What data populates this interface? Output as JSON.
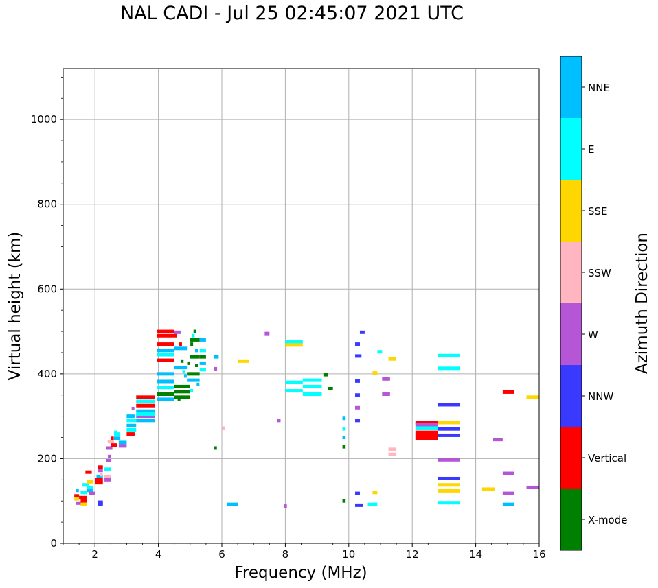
{
  "chart_data": {
    "type": "scatter",
    "title": "NAL CADI - Jul 25 02:45:07 2021 UTC",
    "xlabel": "Frequency (MHz)",
    "ylabel": "Virtual height (km)",
    "xlim": [
      1,
      16
    ],
    "ylim": [
      0,
      1120
    ],
    "xticks": [
      2,
      4,
      6,
      8,
      10,
      12,
      14,
      16
    ],
    "yticks": [
      0,
      200,
      400,
      600,
      800,
      1000
    ],
    "grid": true,
    "colorbar": {
      "label": "Azimuth Direction",
      "categories": [
        {
          "name": "X-mode",
          "color": "#008000"
        },
        {
          "name": "Vertical",
          "color": "#ff0000"
        },
        {
          "name": "NNW",
          "color": "#3a3aff"
        },
        {
          "name": "W",
          "color": "#b456d6"
        },
        {
          "name": "SSW",
          "color": "#ffb6c1"
        },
        {
          "name": "SSE",
          "color": "#ffd700"
        },
        {
          "name": "E",
          "color": "#00ffff"
        },
        {
          "name": "NNE",
          "color": "#00bfff"
        }
      ]
    },
    "echoes": [
      {
        "f0": 1.35,
        "f1": 1.5,
        "h": 112,
        "dir": "Vertical"
      },
      {
        "f0": 1.35,
        "f1": 1.5,
        "h": 105,
        "dir": "SSE"
      },
      {
        "f0": 1.4,
        "f1": 1.6,
        "h": 95,
        "dir": "W"
      },
      {
        "f0": 1.55,
        "f1": 1.75,
        "h": 120,
        "dir": "E"
      },
      {
        "f0": 1.5,
        "f1": 1.75,
        "h": 108,
        "dir": "Vertical"
      },
      {
        "f0": 1.55,
        "f1": 1.75,
        "h": 100,
        "dir": "Vertical"
      },
      {
        "f0": 1.55,
        "f1": 1.75,
        "h": 92,
        "dir": "SSE"
      },
      {
        "f0": 1.6,
        "f1": 1.8,
        "h": 138,
        "dir": "E"
      },
      {
        "f0": 1.75,
        "f1": 1.95,
        "h": 125,
        "dir": "NNE"
      },
      {
        "f0": 1.75,
        "f1": 1.95,
        "h": 132,
        "dir": "E"
      },
      {
        "f0": 1.75,
        "f1": 1.95,
        "h": 145,
        "dir": "SSE"
      },
      {
        "f0": 1.8,
        "f1": 2.0,
        "h": 118,
        "dir": "W"
      },
      {
        "f0": 1.7,
        "f1": 1.9,
        "h": 168,
        "dir": "Vertical"
      },
      {
        "f0": 2.0,
        "f1": 2.25,
        "h": 150,
        "dir": "Vertical"
      },
      {
        "f0": 2.0,
        "f1": 2.25,
        "h": 143,
        "dir": "Vertical"
      },
      {
        "f0": 2.05,
        "f1": 2.25,
        "h": 158,
        "dir": "NNE"
      },
      {
        "f0": 2.1,
        "f1": 2.25,
        "h": 180,
        "dir": "Vertical"
      },
      {
        "f0": 2.1,
        "f1": 2.25,
        "h": 172,
        "dir": "W"
      },
      {
        "f0": 2.1,
        "f1": 2.25,
        "h": 97,
        "dir": "NNW"
      },
      {
        "f0": 2.1,
        "f1": 2.25,
        "h": 92,
        "dir": "NNW"
      },
      {
        "f0": 2.3,
        "f1": 2.5,
        "h": 150,
        "dir": "W"
      },
      {
        "f0": 2.3,
        "f1": 2.5,
        "h": 158,
        "dir": "SSW"
      },
      {
        "f0": 2.3,
        "f1": 2.5,
        "h": 175,
        "dir": "E"
      },
      {
        "f0": 2.35,
        "f1": 2.5,
        "h": 195,
        "dir": "W"
      },
      {
        "f0": 2.35,
        "f1": 2.55,
        "h": 225,
        "dir": "W"
      },
      {
        "f0": 2.4,
        "f1": 2.6,
        "h": 240,
        "dir": "SSW"
      },
      {
        "f0": 2.5,
        "f1": 2.7,
        "h": 232,
        "dir": "Vertical"
      },
      {
        "f0": 2.6,
        "f1": 2.8,
        "h": 248,
        "dir": "NNE"
      },
      {
        "f0": 2.6,
        "f1": 2.8,
        "h": 258,
        "dir": "E"
      },
      {
        "f0": 2.75,
        "f1": 3.0,
        "h": 238,
        "dir": "NNE"
      },
      {
        "f0": 2.75,
        "f1": 3.0,
        "h": 230,
        "dir": "W"
      },
      {
        "f0": 3.0,
        "f1": 3.25,
        "h": 300,
        "dir": "NNE"
      },
      {
        "f0": 3.0,
        "f1": 3.3,
        "h": 290,
        "dir": "E"
      },
      {
        "f0": 3.0,
        "f1": 3.3,
        "h": 278,
        "dir": "NNE"
      },
      {
        "f0": 3.0,
        "f1": 3.3,
        "h": 268,
        "dir": "E"
      },
      {
        "f0": 3.0,
        "f1": 3.25,
        "h": 258,
        "dir": "Vertical"
      },
      {
        "f0": 3.3,
        "f1": 3.9,
        "h": 345,
        "dir": "Vertical"
      },
      {
        "f0": 3.3,
        "f1": 3.9,
        "h": 325,
        "dir": "Vertical"
      },
      {
        "f0": 3.3,
        "f1": 3.9,
        "h": 335,
        "dir": "E"
      },
      {
        "f0": 3.3,
        "f1": 3.9,
        "h": 312,
        "dir": "NNE"
      },
      {
        "f0": 3.3,
        "f1": 3.9,
        "h": 300,
        "dir": "W"
      },
      {
        "f0": 3.3,
        "f1": 3.9,
        "h": 290,
        "dir": "NNE"
      },
      {
        "f0": 3.3,
        "f1": 3.9,
        "h": 305,
        "dir": "E"
      },
      {
        "f0": 3.95,
        "f1": 4.5,
        "h": 500,
        "dir": "Vertical"
      },
      {
        "f0": 3.95,
        "f1": 4.5,
        "h": 490,
        "dir": "Vertical"
      },
      {
        "f0": 3.95,
        "f1": 4.5,
        "h": 470,
        "dir": "Vertical"
      },
      {
        "f0": 3.95,
        "f1": 4.5,
        "h": 455,
        "dir": "NNE"
      },
      {
        "f0": 3.95,
        "f1": 4.5,
        "h": 445,
        "dir": "E"
      },
      {
        "f0": 3.95,
        "f1": 4.5,
        "h": 432,
        "dir": "Vertical"
      },
      {
        "f0": 3.95,
        "f1": 4.5,
        "h": 400,
        "dir": "NNE"
      },
      {
        "f0": 3.95,
        "f1": 4.5,
        "h": 382,
        "dir": "NNE"
      },
      {
        "f0": 3.95,
        "f1": 4.5,
        "h": 368,
        "dir": "E"
      },
      {
        "f0": 3.95,
        "f1": 4.5,
        "h": 352,
        "dir": "X-mode"
      },
      {
        "f0": 3.95,
        "f1": 4.5,
        "h": 340,
        "dir": "NNE"
      },
      {
        "f0": 4.5,
        "f1": 5.0,
        "h": 370,
        "dir": "X-mode"
      },
      {
        "f0": 4.5,
        "f1": 5.0,
        "h": 358,
        "dir": "X-mode"
      },
      {
        "f0": 4.5,
        "f1": 5.0,
        "h": 345,
        "dir": "X-mode"
      },
      {
        "f0": 4.5,
        "f1": 4.9,
        "h": 415,
        "dir": "NNE"
      },
      {
        "f0": 4.5,
        "f1": 4.9,
        "h": 460,
        "dir": "NNE"
      },
      {
        "f0": 4.5,
        "f1": 4.7,
        "h": 498,
        "dir": "W"
      },
      {
        "f0": 4.9,
        "f1": 5.3,
        "h": 400,
        "dir": "X-mode"
      },
      {
        "f0": 4.9,
        "f1": 5.3,
        "h": 385,
        "dir": "NNE"
      },
      {
        "f0": 5.0,
        "f1": 5.3,
        "h": 440,
        "dir": "X-mode"
      },
      {
        "f0": 5.0,
        "f1": 5.3,
        "h": 480,
        "dir": "X-mode"
      },
      {
        "f0": 5.3,
        "f1": 5.5,
        "h": 480,
        "dir": "NNE"
      },
      {
        "f0": 5.3,
        "f1": 5.5,
        "h": 455,
        "dir": "E"
      },
      {
        "f0": 5.3,
        "f1": 5.5,
        "h": 425,
        "dir": "NNE"
      },
      {
        "f0": 5.3,
        "f1": 5.5,
        "h": 410,
        "dir": "E"
      },
      {
        "f0": 5.3,
        "f1": 5.5,
        "h": 440,
        "dir": "X-mode"
      },
      {
        "f0": 5.75,
        "f1": 5.85,
        "h": 412,
        "dir": "W"
      },
      {
        "f0": 5.75,
        "f1": 5.9,
        "h": 440,
        "dir": "NNE"
      },
      {
        "f0": 6.15,
        "f1": 6.5,
        "h": 92,
        "dir": "NNE"
      },
      {
        "f0": 6.5,
        "f1": 6.85,
        "h": 430,
        "dir": "SSE"
      },
      {
        "f0": 7.35,
        "f1": 7.5,
        "h": 495,
        "dir": "W"
      },
      {
        "f0": 7.75,
        "f1": 7.85,
        "h": 290,
        "dir": "W"
      },
      {
        "f0": 7.95,
        "f1": 8.05,
        "h": 88,
        "dir": "W"
      },
      {
        "f0": 8.0,
        "f1": 8.55,
        "h": 475,
        "dir": "E"
      },
      {
        "f0": 8.0,
        "f1": 8.55,
        "h": 468,
        "dir": "SSE"
      },
      {
        "f0": 8.0,
        "f1": 8.55,
        "h": 380,
        "dir": "E"
      },
      {
        "f0": 8.0,
        "f1": 8.55,
        "h": 360,
        "dir": "E"
      },
      {
        "f0": 8.55,
        "f1": 9.15,
        "h": 385,
        "dir": "E"
      },
      {
        "f0": 8.55,
        "f1": 9.15,
        "h": 370,
        "dir": "E"
      },
      {
        "f0": 8.55,
        "f1": 9.15,
        "h": 352,
        "dir": "E"
      },
      {
        "f0": 9.2,
        "f1": 9.35,
        "h": 398,
        "dir": "X-mode"
      },
      {
        "f0": 9.35,
        "f1": 9.5,
        "h": 365,
        "dir": "X-mode"
      },
      {
        "f0": 9.8,
        "f1": 9.9,
        "h": 295,
        "dir": "NNE"
      },
      {
        "f0": 9.8,
        "f1": 9.9,
        "h": 270,
        "dir": "E"
      },
      {
        "f0": 9.8,
        "f1": 9.9,
        "h": 250,
        "dir": "NNE"
      },
      {
        "f0": 9.8,
        "f1": 9.9,
        "h": 228,
        "dir": "X-mode"
      },
      {
        "f0": 9.8,
        "f1": 9.9,
        "h": 100,
        "dir": "X-mode"
      },
      {
        "f0": 10.2,
        "f1": 10.35,
        "h": 470,
        "dir": "NNW"
      },
      {
        "f0": 10.2,
        "f1": 10.4,
        "h": 442,
        "dir": "NNW"
      },
      {
        "f0": 10.2,
        "f1": 10.35,
        "h": 383,
        "dir": "NNW"
      },
      {
        "f0": 10.2,
        "f1": 10.35,
        "h": 350,
        "dir": "NNW"
      },
      {
        "f0": 10.2,
        "f1": 10.35,
        "h": 320,
        "dir": "W"
      },
      {
        "f0": 10.2,
        "f1": 10.35,
        "h": 290,
        "dir": "NNW"
      },
      {
        "f0": 10.2,
        "f1": 10.35,
        "h": 118,
        "dir": "NNW"
      },
      {
        "f0": 10.2,
        "f1": 10.45,
        "h": 90,
        "dir": "NNW"
      },
      {
        "f0": 10.35,
        "f1": 10.5,
        "h": 498,
        "dir": "NNW"
      },
      {
        "f0": 10.6,
        "f1": 10.9,
        "h": 92,
        "dir": "E"
      },
      {
        "f0": 10.75,
        "f1": 10.9,
        "h": 402,
        "dir": "SSE"
      },
      {
        "f0": 10.75,
        "f1": 10.9,
        "h": 120,
        "dir": "SSE"
      },
      {
        "f0": 10.9,
        "f1": 11.05,
        "h": 452,
        "dir": "E"
      },
      {
        "f0": 11.05,
        "f1": 11.3,
        "h": 388,
        "dir": "W"
      },
      {
        "f0": 11.05,
        "f1": 11.3,
        "h": 352,
        "dir": "W"
      },
      {
        "f0": 11.25,
        "f1": 11.5,
        "h": 435,
        "dir": "SSE"
      },
      {
        "f0": 11.25,
        "f1": 11.5,
        "h": 222,
        "dir": "SSW"
      },
      {
        "f0": 11.25,
        "f1": 11.5,
        "h": 210,
        "dir": "SSW"
      },
      {
        "f0": 12.1,
        "f1": 12.8,
        "h": 285,
        "dir": "Vertical"
      },
      {
        "f0": 12.1,
        "f1": 12.8,
        "h": 280,
        "dir": "W"
      },
      {
        "f0": 12.1,
        "f1": 12.8,
        "h": 272,
        "dir": "E"
      },
      {
        "f0": 12.1,
        "f1": 12.8,
        "h": 262,
        "dir": "Vertical"
      },
      {
        "f0": 12.1,
        "f1": 12.8,
        "h": 255,
        "dir": "Vertical"
      },
      {
        "f0": 12.1,
        "f1": 12.8,
        "h": 248,
        "dir": "Vertical"
      },
      {
        "f0": 12.8,
        "f1": 13.5,
        "h": 443,
        "dir": "E"
      },
      {
        "f0": 12.8,
        "f1": 13.5,
        "h": 413,
        "dir": "E"
      },
      {
        "f0": 12.8,
        "f1": 13.5,
        "h": 327,
        "dir": "NNW"
      },
      {
        "f0": 12.8,
        "f1": 13.5,
        "h": 285,
        "dir": "SSE"
      },
      {
        "f0": 12.8,
        "f1": 13.5,
        "h": 270,
        "dir": "NNW"
      },
      {
        "f0": 12.8,
        "f1": 13.5,
        "h": 255,
        "dir": "NNW"
      },
      {
        "f0": 12.8,
        "f1": 13.5,
        "h": 197,
        "dir": "W"
      },
      {
        "f0": 12.8,
        "f1": 13.5,
        "h": 153,
        "dir": "NNW"
      },
      {
        "f0": 12.8,
        "f1": 13.5,
        "h": 138,
        "dir": "SSE"
      },
      {
        "f0": 12.8,
        "f1": 13.5,
        "h": 124,
        "dir": "SSE"
      },
      {
        "f0": 12.8,
        "f1": 13.5,
        "h": 96,
        "dir": "E"
      },
      {
        "f0": 14.2,
        "f1": 14.6,
        "h": 128,
        "dir": "SSE"
      },
      {
        "f0": 14.55,
        "f1": 14.85,
        "h": 245,
        "dir": "W"
      },
      {
        "f0": 14.85,
        "f1": 15.2,
        "h": 357,
        "dir": "Vertical"
      },
      {
        "f0": 14.85,
        "f1": 15.2,
        "h": 165,
        "dir": "W"
      },
      {
        "f0": 14.85,
        "f1": 15.2,
        "h": 118,
        "dir": "W"
      },
      {
        "f0": 14.85,
        "f1": 15.2,
        "h": 92,
        "dir": "NNE"
      },
      {
        "f0": 15.6,
        "f1": 16.0,
        "h": 345,
        "dir": "SSE"
      },
      {
        "f0": 15.6,
        "f1": 16.0,
        "h": 132,
        "dir": "W"
      }
    ],
    "scatter": [
      {
        "f": 1.45,
        "h": 125,
        "dir": "NNE"
      },
      {
        "f": 2.2,
        "h": 162,
        "dir": "SSW"
      },
      {
        "f": 2.45,
        "h": 205,
        "dir": "W"
      },
      {
        "f": 2.55,
        "h": 248,
        "dir": "Vertical"
      },
      {
        "f": 2.65,
        "h": 262,
        "dir": "E"
      },
      {
        "f": 3.2,
        "h": 318,
        "dir": "W"
      },
      {
        "f": 4.55,
        "h": 490,
        "dir": "Vertical"
      },
      {
        "f": 4.7,
        "h": 470,
        "dir": "Vertical"
      },
      {
        "f": 4.75,
        "h": 430,
        "dir": "X-mode"
      },
      {
        "f": 4.8,
        "h": 405,
        "dir": "E"
      },
      {
        "f": 4.85,
        "h": 395,
        "dir": "NNE"
      },
      {
        "f": 4.95,
        "h": 425,
        "dir": "X-mode"
      },
      {
        "f": 5.05,
        "h": 470,
        "dir": "X-mode"
      },
      {
        "f": 5.1,
        "h": 490,
        "dir": "E"
      },
      {
        "f": 5.15,
        "h": 500,
        "dir": "X-mode"
      },
      {
        "f": 5.2,
        "h": 455,
        "dir": "NNE"
      },
      {
        "f": 5.25,
        "h": 375,
        "dir": "NNE"
      },
      {
        "f": 5.05,
        "h": 360,
        "dir": "E"
      },
      {
        "f": 4.65,
        "h": 340,
        "dir": "X-mode"
      },
      {
        "f": 5.2,
        "h": 420,
        "dir": "X-mode"
      },
      {
        "f": 5.8,
        "h": 225,
        "dir": "X-mode"
      },
      {
        "f": 6.05,
        "h": 272,
        "dir": "SSW"
      }
    ]
  }
}
